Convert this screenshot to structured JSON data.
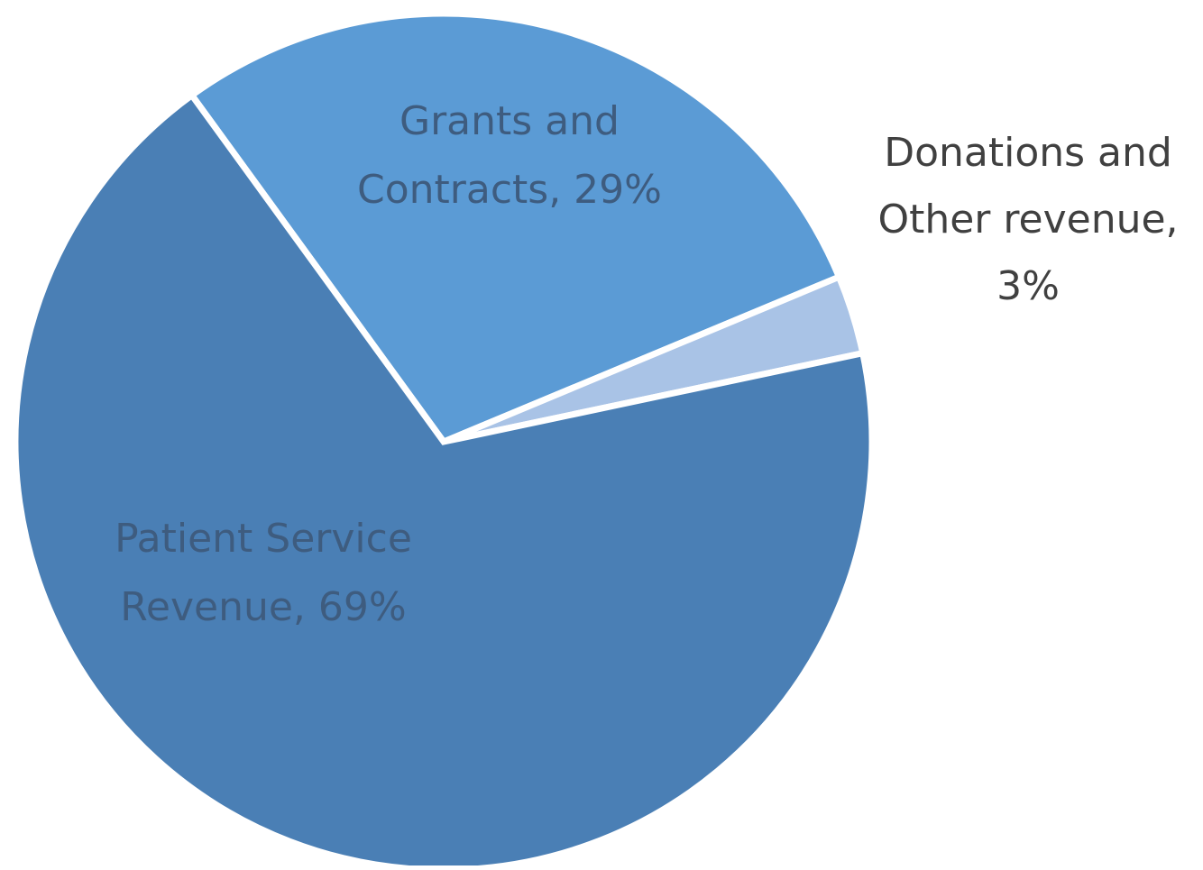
{
  "chart_data": {
    "type": "pie",
    "slices": [
      {
        "label": "Patient Service Revenue",
        "value": 69,
        "label_lines": [
          "Patient Service",
          "Revenue, 69%"
        ],
        "color": "#4a7fb5",
        "text_color": "#3e5c7f"
      },
      {
        "label": "Grants and Contracts",
        "value": 29,
        "label_lines": [
          "Grants and",
          "Contracts, 29%"
        ],
        "color": "#5b9bd5",
        "text_color": "#3e5c7f"
      },
      {
        "label": "Donations and Other revenue",
        "value": 3,
        "label_lines": [
          "Donations and",
          "Other revenue,",
          "3%"
        ],
        "color": "#a9c3e6",
        "text_color": "#404040"
      }
    ],
    "separator_color": "#ffffff"
  }
}
